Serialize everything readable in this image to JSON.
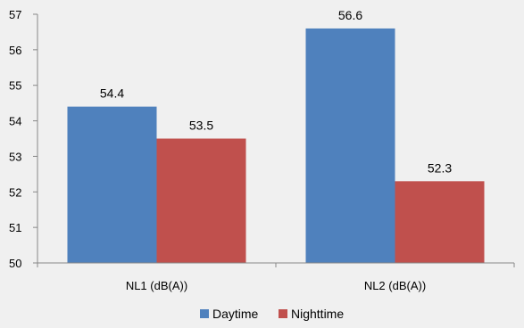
{
  "chart_data": {
    "type": "bar",
    "categories": [
      "NL1 (dB(A))",
      "NL2 (dB(A))"
    ],
    "series": [
      {
        "name": "Daytime",
        "values": [
          54.4,
          56.6
        ],
        "color": "#4f81bd"
      },
      {
        "name": "Nighttime",
        "values": [
          53.5,
          52.3
        ],
        "color": "#c0504d"
      }
    ],
    "ylim": [
      50,
      57
    ],
    "yticks": [
      50,
      51,
      52,
      53,
      54,
      55,
      56,
      57
    ],
    "data_labels": true,
    "grid": false,
    "legend_position": "bottom"
  }
}
